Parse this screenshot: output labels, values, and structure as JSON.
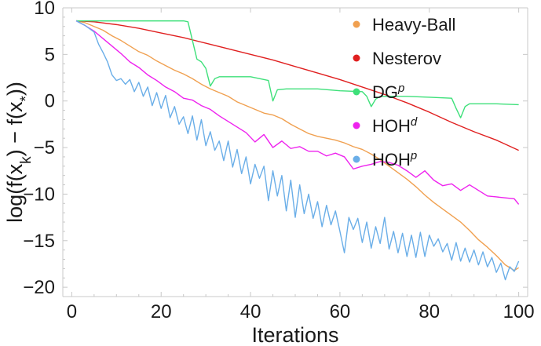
{
  "chart_data": {
    "type": "line",
    "xlabel": "Iterations",
    "ylabel": "log(f(x_k) − f(x_*))",
    "ylabel_parts": {
      "pre": "log(f(x",
      "sub1": "k",
      "mid": ") − f(x",
      "sub2": "*",
      "post": "))"
    },
    "xlim": [
      -2,
      102
    ],
    "ylim": [
      -21,
      10
    ],
    "xticks": [
      0,
      20,
      40,
      60,
      80,
      100
    ],
    "yticks": [
      10,
      5,
      0,
      -5,
      -10,
      -15,
      -20
    ],
    "ytick_labels": [
      "10",
      "5",
      "0",
      "−5",
      "−10",
      "−15",
      "−20"
    ],
    "xtick_labels": [
      "0",
      "20",
      "40",
      "60",
      "80",
      "100"
    ],
    "grid": false,
    "legend_position": "top-right",
    "series": [
      {
        "name": "Heavy-Ball",
        "label_base": "Heavy-Ball",
        "label_sup": "",
        "color": "#f0a050",
        "x": [
          1,
          3,
          5,
          7,
          9,
          11,
          13,
          15,
          17,
          19,
          21,
          23,
          25,
          27,
          29,
          31,
          33,
          35,
          37,
          39,
          41,
          43,
          45,
          47,
          49,
          51,
          53,
          55,
          57,
          59,
          61,
          63,
          65,
          67,
          69,
          71,
          73,
          75,
          77,
          79,
          81,
          83,
          85,
          87,
          89,
          91,
          93,
          95,
          97,
          99,
          100
        ],
        "y": [
          8.6,
          8.4,
          8.0,
          7.6,
          7.0,
          6.5,
          5.9,
          5.3,
          4.9,
          4.3,
          3.8,
          3.3,
          2.9,
          2.4,
          1.8,
          1.3,
          0.9,
          0.5,
          -0.1,
          -0.5,
          -0.9,
          -1.3,
          -1.5,
          -1.9,
          -2.5,
          -3.0,
          -3.5,
          -3.8,
          -4.0,
          -4.2,
          -4.5,
          -4.9,
          -5.2,
          -5.7,
          -6.3,
          -7.0,
          -7.7,
          -8.4,
          -9.2,
          -10.1,
          -10.9,
          -11.6,
          -12.3,
          -13.0,
          -13.9,
          -14.9,
          -15.7,
          -16.6,
          -17.6,
          -18.2,
          -17.9
        ]
      },
      {
        "name": "Nesterov",
        "label_base": "Nesterov",
        "label_sup": "",
        "color": "#e02020",
        "x": [
          1,
          5,
          10,
          15,
          20,
          25,
          30,
          35,
          40,
          45,
          50,
          55,
          60,
          65,
          70,
          75,
          80,
          85,
          90,
          95,
          100
        ],
        "y": [
          8.6,
          8.5,
          8.2,
          7.8,
          7.3,
          6.8,
          6.2,
          5.6,
          5.0,
          4.4,
          3.7,
          3.0,
          2.3,
          1.5,
          0.7,
          -0.2,
          -1.2,
          -2.3,
          -3.3,
          -4.2,
          -5.3
        ]
      },
      {
        "name": "DGp",
        "label_base": "DG",
        "label_sup": "p",
        "color": "#3ee07a",
        "x": [
          1,
          10,
          20,
          25,
          26,
          27,
          28,
          29,
          30,
          31,
          32,
          33,
          35,
          40,
          44,
          45,
          46,
          48,
          55,
          60,
          65,
          66,
          67,
          68,
          69,
          70,
          75,
          80,
          85,
          86,
          87,
          88,
          89,
          90,
          95,
          100
        ],
        "y": [
          8.6,
          8.6,
          8.6,
          8.6,
          8.5,
          6.5,
          4.5,
          4.2,
          3.5,
          1.6,
          2.4,
          2.6,
          2.6,
          2.6,
          2.2,
          0.0,
          1.2,
          1.3,
          1.3,
          1.1,
          1.0,
          0.5,
          -0.6,
          0.2,
          0.5,
          0.5,
          0.5,
          0.4,
          0.3,
          -0.8,
          -1.8,
          -0.6,
          -0.3,
          -0.3,
          -0.3,
          -0.4
        ]
      },
      {
        "name": "HOHd",
        "label_base": "HOH",
        "label_sup": "d",
        "color": "#ee22ee",
        "x": [
          1,
          3,
          5,
          7,
          9,
          11,
          13,
          15,
          17,
          19,
          21,
          23,
          25,
          27,
          29,
          31,
          33,
          35,
          37,
          39,
          41,
          43,
          45,
          47,
          49,
          51,
          53,
          55,
          57,
          59,
          61,
          63,
          65,
          67,
          69,
          71,
          73,
          75,
          77,
          79,
          81,
          83,
          85,
          87,
          89,
          91,
          93,
          95,
          97,
          99,
          100
        ],
        "y": [
          8.6,
          8.1,
          7.5,
          6.7,
          5.9,
          5.1,
          4.2,
          3.6,
          2.8,
          2.2,
          1.5,
          1.0,
          0.3,
          0.1,
          -0.5,
          -0.9,
          -1.6,
          -2.2,
          -2.8,
          -3.4,
          -4.4,
          -3.6,
          -5.0,
          -4.3,
          -5.1,
          -4.9,
          -5.4,
          -5.4,
          -5.9,
          -5.6,
          -6.0,
          -7.3,
          -7.0,
          -6.8,
          -6.5,
          -6.6,
          -6.9,
          -7.5,
          -8.2,
          -7.5,
          -8.5,
          -9.1,
          -8.9,
          -9.6,
          -9.0,
          -9.6,
          -10.2,
          -10.3,
          -10.4,
          -10.5,
          -11.1
        ]
      },
      {
        "name": "HOHp",
        "label_base": "HOH",
        "label_sup": "p",
        "color": "#6aaee8",
        "x": [
          1,
          3,
          5,
          6,
          7,
          8,
          9,
          10,
          11,
          12,
          13,
          14,
          15,
          16,
          17,
          18,
          19,
          20,
          21,
          22,
          23,
          24,
          25,
          26,
          27,
          28,
          29,
          30,
          31,
          32,
          33,
          34,
          35,
          36,
          37,
          38,
          39,
          40,
          41,
          42,
          43,
          44,
          45,
          46,
          47,
          48,
          49,
          50,
          51,
          52,
          53,
          54,
          55,
          56,
          57,
          58,
          59,
          60,
          61,
          62,
          63,
          64,
          65,
          66,
          67,
          68,
          69,
          70,
          71,
          72,
          73,
          74,
          75,
          76,
          77,
          78,
          79,
          80,
          81,
          82,
          83,
          84,
          85,
          86,
          87,
          88,
          89,
          90,
          91,
          92,
          93,
          94,
          95,
          96,
          97,
          98,
          99,
          100
        ],
        "y": [
          8.6,
          8.1,
          7.4,
          6.1,
          5.2,
          4.2,
          2.8,
          2.2,
          2.4,
          1.8,
          2.3,
          1.0,
          2.0,
          0.5,
          1.5,
          -0.5,
          0.9,
          -0.8,
          0.6,
          -1.8,
          -0.6,
          -2.5,
          -1.7,
          -3.5,
          -1.6,
          -4.2,
          -2.0,
          -4.8,
          -3.3,
          -5.3,
          -4.3,
          -6.4,
          -4.3,
          -7.1,
          -5.2,
          -7.8,
          -6.0,
          -8.9,
          -6.8,
          -8.3,
          -7.0,
          -10.7,
          -7.5,
          -10.2,
          -8.0,
          -11.8,
          -8.5,
          -12.5,
          -9.0,
          -12.1,
          -10.0,
          -12.6,
          -10.8,
          -13.5,
          -11.2,
          -13.3,
          -11.8,
          -14.0,
          -16.3,
          -12.5,
          -13.8,
          -12.6,
          -15.2,
          -13.0,
          -15.8,
          -13.5,
          -15.3,
          -12.5,
          -15.9,
          -14.0,
          -16.3,
          -14.2,
          -16.7,
          -14.4,
          -16.8,
          -14.1,
          -16.7,
          -14.4,
          -15.6,
          -14.8,
          -16.2,
          -15.3,
          -17.1,
          -15.2,
          -17.2,
          -15.8,
          -17.3,
          -16.0,
          -17.6,
          -16.2,
          -17.8,
          -16.8,
          -18.4,
          -17.4,
          -19.2,
          -17.8,
          -18.3,
          -17.2
        ]
      }
    ]
  }
}
